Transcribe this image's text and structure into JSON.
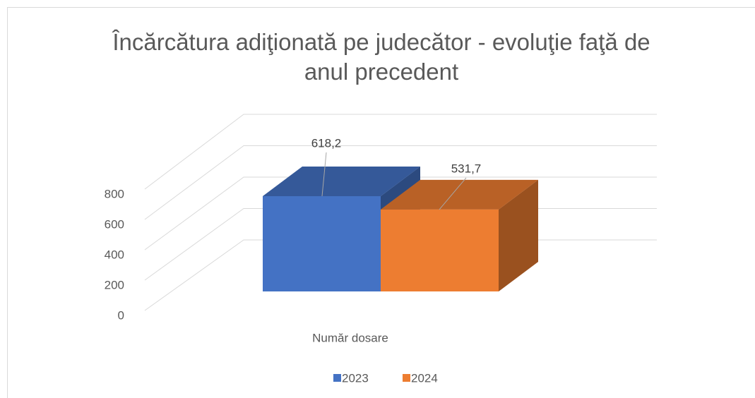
{
  "chart_data": {
    "type": "bar3d",
    "title": "Încărcătura adiţionată pe judecător - evoluţie faţă de anul precedent",
    "categories": [
      "Număr dosare"
    ],
    "series": [
      {
        "name": "2023",
        "color": "#4472c4",
        "values": [
          618.2
        ],
        "value_labels": [
          "618,2"
        ]
      },
      {
        "name": "2024",
        "color": "#ed7d31",
        "values": [
          531.7
        ],
        "value_labels": [
          "531,7"
        ]
      }
    ],
    "ylim": [
      0,
      800
    ],
    "yticks": [
      0,
      200,
      400,
      600,
      800
    ],
    "grid": true,
    "legend": "bottom"
  }
}
